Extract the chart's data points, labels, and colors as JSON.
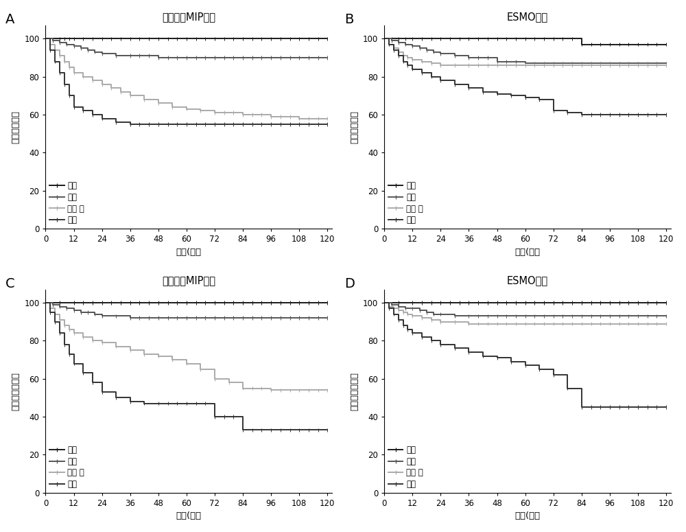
{
  "panels": [
    {
      "label": "A",
      "title": "本专利中MIP模型",
      "ylabel": "无复发生存率",
      "xlabel": "时间(月）",
      "curves": [
        {
          "label": "低危",
          "color": "#1a1a1a",
          "linewidth": 1.4,
          "times": [
            0,
            6,
            8,
            10,
            12,
            24,
            36,
            48,
            60,
            72,
            84,
            96,
            108,
            120
          ],
          "surv": [
            100,
            100,
            100,
            100,
            100,
            100,
            100,
            100,
            100,
            100,
            100,
            100,
            100,
            100
          ]
        },
        {
          "label": "中危",
          "color": "#555555",
          "linewidth": 1.4,
          "times": [
            0,
            3,
            6,
            9,
            12,
            15,
            18,
            21,
            24,
            30,
            36,
            48,
            60,
            72,
            84,
            96,
            108,
            120
          ],
          "surv": [
            100,
            99,
            98,
            97,
            96,
            95,
            94,
            93,
            92,
            91,
            91,
            90,
            90,
            90,
            90,
            90,
            90,
            90
          ]
        },
        {
          "label": "高中 危",
          "color": "#aaaaaa",
          "linewidth": 1.4,
          "times": [
            0,
            2,
            4,
            6,
            8,
            10,
            12,
            16,
            20,
            24,
            28,
            32,
            36,
            42,
            48,
            54,
            60,
            66,
            72,
            84,
            96,
            108,
            120
          ],
          "surv": [
            100,
            97,
            94,
            91,
            88,
            85,
            82,
            80,
            78,
            76,
            74,
            72,
            70,
            68,
            66,
            64,
            63,
            62,
            61,
            60,
            59,
            58,
            58
          ]
        },
        {
          "label": "高危",
          "color": "#333333",
          "linewidth": 1.4,
          "times": [
            0,
            2,
            4,
            6,
            8,
            10,
            12,
            16,
            20,
            24,
            30,
            36,
            48,
            60,
            72,
            84,
            96,
            108,
            120
          ],
          "surv": [
            100,
            94,
            88,
            82,
            76,
            70,
            64,
            62,
            60,
            58,
            56,
            55,
            55,
            55,
            55,
            55,
            55,
            55,
            55
          ]
        }
      ]
    },
    {
      "label": "B",
      "title": "ESMO模型",
      "ylabel": "无复发生存率",
      "xlabel": "时间(月）",
      "curves": [
        {
          "label": "低危",
          "color": "#1a1a1a",
          "linewidth": 1.4,
          "times": [
            0,
            3,
            6,
            9,
            12,
            24,
            36,
            48,
            60,
            72,
            84,
            96,
            108,
            120
          ],
          "surv": [
            100,
            100,
            100,
            100,
            100,
            100,
            100,
            100,
            100,
            100,
            97,
            97,
            97,
            97
          ]
        },
        {
          "label": "中危",
          "color": "#555555",
          "linewidth": 1.4,
          "times": [
            0,
            3,
            6,
            9,
            12,
            15,
            18,
            21,
            24,
            30,
            36,
            48,
            60,
            72,
            84,
            96,
            108,
            120
          ],
          "surv": [
            100,
            99,
            98,
            97,
            96,
            95,
            94,
            93,
            92,
            91,
            90,
            88,
            87,
            87,
            87,
            87,
            87,
            87
          ]
        },
        {
          "label": "高中 危",
          "color": "#aaaaaa",
          "linewidth": 1.4,
          "times": [
            0,
            2,
            4,
            6,
            8,
            10,
            12,
            16,
            20,
            24,
            30,
            36,
            48,
            60,
            72,
            84,
            96,
            108,
            120
          ],
          "surv": [
            100,
            97,
            95,
            93,
            91,
            90,
            89,
            88,
            87,
            86,
            86,
            86,
            86,
            86,
            86,
            86,
            86,
            86,
            86
          ]
        },
        {
          "label": "高危",
          "color": "#333333",
          "linewidth": 1.4,
          "times": [
            0,
            2,
            4,
            6,
            8,
            10,
            12,
            16,
            20,
            24,
            30,
            36,
            42,
            48,
            54,
            60,
            66,
            72,
            78,
            84,
            96,
            108,
            120
          ],
          "surv": [
            100,
            97,
            94,
            91,
            88,
            86,
            84,
            82,
            80,
            78,
            76,
            74,
            72,
            71,
            70,
            69,
            68,
            62,
            61,
            60,
            60,
            60,
            60
          ]
        }
      ]
    },
    {
      "label": "C",
      "title": "本专利中MIP模型",
      "ylabel": "疾病特异生存率",
      "xlabel": "时间(月）",
      "curves": [
        {
          "label": "低危",
          "color": "#1a1a1a",
          "linewidth": 1.4,
          "times": [
            0,
            6,
            12,
            24,
            36,
            48,
            60,
            72,
            84,
            96,
            108,
            120
          ],
          "surv": [
            100,
            100,
            100,
            100,
            100,
            100,
            100,
            100,
            100,
            100,
            100,
            100
          ]
        },
        {
          "label": "中危",
          "color": "#555555",
          "linewidth": 1.4,
          "times": [
            0,
            3,
            6,
            9,
            12,
            15,
            18,
            21,
            24,
            30,
            36,
            48,
            60,
            72,
            84,
            96,
            108,
            120
          ],
          "surv": [
            100,
            99,
            98,
            97,
            96,
            95,
            95,
            94,
            93,
            93,
            92,
            92,
            92,
            92,
            92,
            92,
            92,
            92
          ]
        },
        {
          "label": "高中 危",
          "color": "#aaaaaa",
          "linewidth": 1.4,
          "times": [
            0,
            2,
            4,
            6,
            8,
            10,
            12,
            16,
            20,
            24,
            30,
            36,
            42,
            48,
            54,
            60,
            66,
            72,
            78,
            84,
            96,
            108,
            120
          ],
          "surv": [
            100,
            97,
            94,
            91,
            88,
            86,
            84,
            82,
            80,
            79,
            77,
            75,
            73,
            72,
            70,
            68,
            65,
            60,
            58,
            55,
            54,
            54,
            54
          ]
        },
        {
          "label": "高危",
          "color": "#333333",
          "linewidth": 1.4,
          "times": [
            0,
            2,
            4,
            6,
            8,
            10,
            12,
            16,
            20,
            24,
            30,
            36,
            42,
            48,
            60,
            72,
            84,
            96,
            108,
            120
          ],
          "surv": [
            100,
            95,
            90,
            84,
            78,
            73,
            68,
            63,
            58,
            53,
            50,
            48,
            47,
            47,
            47,
            40,
            33,
            33,
            33,
            33
          ]
        }
      ]
    },
    {
      "label": "D",
      "title": "ESMO模型",
      "ylabel": "疾病特异生存率",
      "xlabel": "时间(月）",
      "curves": [
        {
          "label": "低危",
          "color": "#1a1a1a",
          "linewidth": 1.4,
          "times": [
            0,
            6,
            12,
            24,
            36,
            48,
            60,
            72,
            84,
            96,
            108,
            120
          ],
          "surv": [
            100,
            100,
            100,
            100,
            100,
            100,
            100,
            100,
            100,
            100,
            100,
            100
          ]
        },
        {
          "label": "中危",
          "color": "#555555",
          "linewidth": 1.4,
          "times": [
            0,
            3,
            6,
            9,
            12,
            15,
            18,
            21,
            24,
            30,
            36,
            48,
            60,
            72,
            84,
            96,
            108,
            120
          ],
          "surv": [
            100,
            99,
            98,
            97,
            97,
            96,
            95,
            94,
            94,
            93,
            93,
            93,
            93,
            93,
            93,
            93,
            93,
            93
          ]
        },
        {
          "label": "高中 危",
          "color": "#aaaaaa",
          "linewidth": 1.4,
          "times": [
            0,
            2,
            4,
            6,
            8,
            10,
            12,
            16,
            20,
            24,
            30,
            36,
            48,
            60,
            72,
            84,
            96,
            108,
            120
          ],
          "surv": [
            100,
            98,
            97,
            96,
            95,
            94,
            93,
            92,
            91,
            90,
            90,
            89,
            89,
            89,
            89,
            89,
            89,
            89,
            89
          ]
        },
        {
          "label": "高危",
          "color": "#333333",
          "linewidth": 1.4,
          "times": [
            0,
            2,
            4,
            6,
            8,
            10,
            12,
            16,
            20,
            24,
            30,
            36,
            42,
            48,
            54,
            60,
            66,
            72,
            78,
            84,
            96,
            108,
            120
          ],
          "surv": [
            100,
            97,
            94,
            91,
            88,
            86,
            84,
            82,
            80,
            78,
            76,
            74,
            72,
            71,
            69,
            67,
            65,
            62,
            55,
            45,
            45,
            45,
            45
          ]
        }
      ]
    }
  ],
  "xticks": [
    0,
    12,
    24,
    36,
    48,
    60,
    72,
    84,
    96,
    108,
    120
  ],
  "yticks": [
    0,
    20,
    40,
    60,
    80,
    100
  ],
  "ylim": [
    0,
    107
  ],
  "xlim": [
    0,
    122
  ],
  "bg_color": "#ffffff",
  "tick_fontsize": 8.5,
  "label_fontsize": 9.5,
  "title_fontsize": 10.5,
  "legend_fontsize": 8.5,
  "panel_label_fontsize": 14
}
